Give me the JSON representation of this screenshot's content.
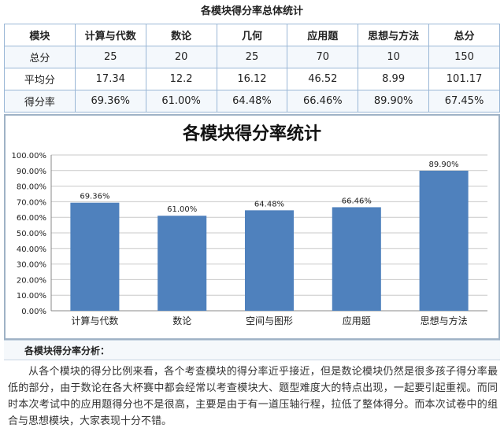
{
  "table": {
    "title": "各模块得分率总体统计",
    "header": [
      "模块",
      "计算与代数",
      "数论",
      "几何",
      "应用题",
      "思想与方法",
      "总分"
    ],
    "rows": [
      [
        "总分",
        "25",
        "20",
        "25",
        "70",
        "10",
        "150"
      ],
      [
        "平均分",
        "17.34",
        "12.2",
        "16.12",
        "46.52",
        "8.99",
        "101.17"
      ],
      [
        "得分率",
        "69.36%",
        "61.00%",
        "64.48%",
        "66.46%",
        "89.90%",
        "67.45%"
      ]
    ]
  },
  "chart_data": {
    "type": "bar",
    "title": "各模块得分率统计",
    "categories": [
      "计算与代数",
      "数论",
      "空间与图形",
      "应用题",
      "思想与方法"
    ],
    "values": [
      69.36,
      61.0,
      64.48,
      66.46,
      89.9
    ],
    "data_labels": [
      "69.36%",
      "61.00%",
      "64.48%",
      "66.46%",
      "89.90%"
    ],
    "ylim": [
      0,
      100
    ],
    "yticks": [
      0,
      10,
      20,
      30,
      40,
      50,
      60,
      70,
      80,
      90,
      100
    ],
    "ytick_labels": [
      "0.00%",
      "10.00%",
      "20.00%",
      "30.00%",
      "40.00%",
      "50.00%",
      "60.00%",
      "70.00%",
      "80.00%",
      "90.00%",
      "100.00%"
    ],
    "grid": true,
    "bar_color": "#4f81bd",
    "grid_color": "#c8c8c8"
  },
  "analysis": {
    "heading": "各模块得分率分析：",
    "text": "从各个模块的得分比例来看，各个考查模块的得分率近乎接近，但是数论模块仍然是很多孩子得分率最低的部分，由于数论在各大杯赛中都会经常以考查模块大、题型难度大的特点出现，一起要引起重视。而同时本次考试中的应用题得分也不是很高，主要是由于有一道压轴行程，拉低了整体得分。而本次试卷中的组合与思想模块，大家表现十分不错。"
  }
}
